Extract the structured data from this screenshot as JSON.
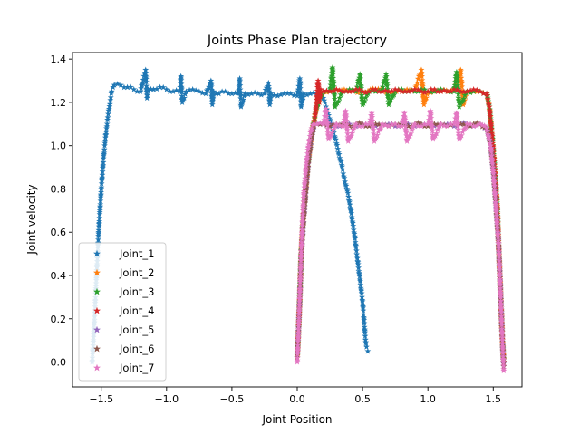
{
  "chart_data": {
    "type": "scatter",
    "title": "Joints Phase Plan trajectory",
    "xlabel": "Joint Position",
    "ylabel": "Joint velocity",
    "xlim": [
      -1.72,
      1.72
    ],
    "ylim": [
      -0.115,
      1.43
    ],
    "xticks": [
      -1.5,
      -1.0,
      -0.5,
      0.0,
      0.5,
      1.0,
      1.5
    ],
    "xtick_labels": [
      "−1.5",
      "−1.0",
      "−0.5",
      "0.0",
      "0.5",
      "1.0",
      "1.5"
    ],
    "yticks": [
      0.0,
      0.2,
      0.4,
      0.6,
      0.8,
      1.0,
      1.2,
      1.4
    ],
    "ytick_labels": [
      "0.0",
      "0.2",
      "0.4",
      "0.6",
      "0.8",
      "1.0",
      "1.2",
      "1.4"
    ],
    "grid": false,
    "legend_position": "lower-left",
    "marker": "star",
    "series": [
      {
        "name": "Joint_1",
        "color": "#1f77b4",
        "x": [
          -1.57,
          -1.56,
          -1.55,
          -1.54,
          -1.53,
          -1.52,
          -1.51,
          -1.5,
          -1.49,
          -1.48,
          -1.47,
          -1.46,
          -1.45,
          -1.44,
          -1.43,
          -1.42,
          -1.41,
          -1.4,
          -1.35,
          -1.3,
          -1.25,
          -1.2,
          -1.16,
          -1.15,
          -1.14,
          -1.1,
          -1.05,
          -1.0,
          -0.95,
          -0.9,
          -0.89,
          -0.88,
          -0.85,
          -0.8,
          -0.75,
          -0.7,
          -0.66,
          -0.65,
          -0.64,
          -0.6,
          -0.55,
          -0.5,
          -0.45,
          -0.44,
          -0.43,
          -0.4,
          -0.35,
          -0.3,
          -0.25,
          -0.22,
          -0.21,
          -0.2,
          -0.15,
          -0.1,
          -0.05,
          0.0,
          0.02,
          0.03,
          0.05,
          0.1,
          0.15,
          0.2,
          0.22,
          0.24,
          0.26,
          0.28,
          0.3,
          0.32,
          0.34,
          0.36,
          0.38,
          0.4,
          0.42,
          0.44,
          0.46,
          0.48,
          0.5,
          0.51,
          0.52,
          0.53,
          0.54
        ],
        "y": [
          0.0,
          0.1,
          0.22,
          0.35,
          0.48,
          0.6,
          0.7,
          0.8,
          0.88,
          0.96,
          1.02,
          1.08,
          1.13,
          1.17,
          1.21,
          1.25,
          1.27,
          1.28,
          1.28,
          1.27,
          1.26,
          1.25,
          1.35,
          1.22,
          1.26,
          1.26,
          1.27,
          1.26,
          1.25,
          1.25,
          1.32,
          1.2,
          1.25,
          1.26,
          1.25,
          1.24,
          1.3,
          1.19,
          1.25,
          1.24,
          1.25,
          1.24,
          1.24,
          1.31,
          1.18,
          1.24,
          1.24,
          1.24,
          1.24,
          1.29,
          1.19,
          1.24,
          1.23,
          1.24,
          1.24,
          1.23,
          1.31,
          1.18,
          1.24,
          1.24,
          1.24,
          1.22,
          1.18,
          1.14,
          1.1,
          1.06,
          1.01,
          0.96,
          0.91,
          0.85,
          0.8,
          0.74,
          0.66,
          0.58,
          0.48,
          0.38,
          0.28,
          0.2,
          0.12,
          0.07,
          0.05
        ]
      },
      {
        "name": "Joint_2",
        "color": "#ff7f0e",
        "x": [
          0.0,
          0.01,
          0.02,
          0.03,
          0.05,
          0.08,
          0.11,
          0.14,
          0.17,
          0.2,
          0.25,
          0.3,
          0.4,
          0.5,
          0.6,
          0.7,
          0.8,
          0.9,
          0.95,
          0.97,
          1.0,
          1.1,
          1.2,
          1.25,
          1.27,
          1.3,
          1.35,
          1.4,
          1.45,
          1.47,
          1.49,
          1.51,
          1.53,
          1.54,
          1.55,
          1.56,
          1.57,
          1.58
        ],
        "y": [
          0.02,
          0.15,
          0.3,
          0.5,
          0.7,
          0.9,
          1.05,
          1.15,
          1.22,
          1.25,
          1.25,
          1.26,
          1.25,
          1.25,
          1.26,
          1.25,
          1.25,
          1.26,
          1.35,
          1.19,
          1.25,
          1.25,
          1.26,
          1.35,
          1.19,
          1.25,
          1.25,
          1.25,
          1.24,
          1.18,
          1.05,
          0.9,
          0.72,
          0.55,
          0.4,
          0.25,
          0.1,
          0.0
        ]
      },
      {
        "name": "Joint_3",
        "color": "#2ca02c",
        "x": [
          0.0,
          0.01,
          0.02,
          0.03,
          0.05,
          0.08,
          0.11,
          0.14,
          0.17,
          0.2,
          0.25,
          0.27,
          0.29,
          0.35,
          0.4,
          0.45,
          0.48,
          0.5,
          0.55,
          0.6,
          0.65,
          0.68,
          0.7,
          0.75,
          0.8,
          0.85,
          0.9,
          0.95,
          1.0,
          1.05,
          1.1,
          1.15,
          1.2,
          1.22,
          1.24,
          1.3,
          1.35,
          1.4,
          1.45,
          1.47,
          1.49,
          1.51,
          1.53,
          1.54,
          1.55,
          1.56,
          1.57,
          1.58
        ],
        "y": [
          0.02,
          0.15,
          0.3,
          0.5,
          0.7,
          0.9,
          1.05,
          1.15,
          1.22,
          1.25,
          1.25,
          1.36,
          1.18,
          1.25,
          1.26,
          1.25,
          1.33,
          1.19,
          1.25,
          1.25,
          1.26,
          1.33,
          1.19,
          1.25,
          1.26,
          1.25,
          1.25,
          1.26,
          1.25,
          1.25,
          1.26,
          1.25,
          1.25,
          1.34,
          1.18,
          1.25,
          1.25,
          1.25,
          1.24,
          1.18,
          1.05,
          0.9,
          0.72,
          0.55,
          0.4,
          0.25,
          0.1,
          0.0
        ]
      },
      {
        "name": "Joint_4",
        "color": "#d62728",
        "x": [
          0.0,
          0.01,
          0.02,
          0.03,
          0.05,
          0.08,
          0.11,
          0.14,
          0.16,
          0.17,
          0.18,
          0.2,
          0.25,
          0.3,
          0.35,
          0.4,
          0.45,
          0.5,
          0.55,
          0.6,
          0.65,
          0.7,
          0.75,
          0.8,
          0.85,
          0.9,
          0.95,
          1.0,
          1.05,
          1.1,
          1.15,
          1.2,
          1.25,
          1.3,
          1.35,
          1.4,
          1.45,
          1.47,
          1.49,
          1.51,
          1.53,
          1.54,
          1.55,
          1.56,
          1.57,
          1.58
        ],
        "y": [
          0.02,
          0.15,
          0.3,
          0.5,
          0.7,
          0.9,
          1.05,
          1.15,
          1.3,
          1.2,
          1.26,
          1.25,
          1.25,
          1.26,
          1.25,
          1.25,
          1.26,
          1.25,
          1.25,
          1.26,
          1.25,
          1.25,
          1.26,
          1.25,
          1.25,
          1.26,
          1.25,
          1.25,
          1.26,
          1.25,
          1.25,
          1.26,
          1.25,
          1.25,
          1.26,
          1.25,
          1.24,
          1.18,
          1.05,
          0.9,
          0.72,
          0.55,
          0.4,
          0.25,
          0.1,
          0.0
        ]
      },
      {
        "name": "Joint_5",
        "color": "#9467bd",
        "x": [
          0.0,
          0.01,
          0.02,
          0.03,
          0.05,
          0.07,
          0.09,
          0.11,
          0.13,
          0.15,
          0.2,
          0.25,
          0.3,
          0.35,
          0.4,
          0.45,
          0.5,
          0.55,
          0.6,
          0.65,
          0.7,
          0.75,
          0.8,
          0.85,
          0.9,
          0.95,
          1.0,
          1.05,
          1.1,
          1.15,
          1.2,
          1.25,
          1.3,
          1.35,
          1.4,
          1.45,
          1.48,
          1.5,
          1.52,
          1.54,
          1.55,
          1.56,
          1.57,
          1.58
        ],
        "y": [
          0.02,
          0.15,
          0.3,
          0.48,
          0.66,
          0.82,
          0.95,
          1.04,
          1.09,
          1.1,
          1.1,
          1.1,
          1.09,
          1.1,
          1.1,
          1.09,
          1.1,
          1.1,
          1.09,
          1.1,
          1.1,
          1.09,
          1.1,
          1.1,
          1.09,
          1.1,
          1.1,
          1.09,
          1.1,
          1.1,
          1.09,
          1.1,
          1.1,
          1.09,
          1.1,
          1.08,
          1.0,
          0.88,
          0.72,
          0.55,
          0.4,
          0.25,
          0.1,
          -0.02
        ]
      },
      {
        "name": "Joint_6",
        "color": "#8c564b",
        "x": [
          0.0,
          0.01,
          0.02,
          0.03,
          0.05,
          0.07,
          0.09,
          0.11,
          0.13,
          0.15,
          0.2,
          0.25,
          0.3,
          0.35,
          0.4,
          0.45,
          0.5,
          0.55,
          0.6,
          0.65,
          0.7,
          0.75,
          0.8,
          0.85,
          0.9,
          0.95,
          1.0,
          1.05,
          1.1,
          1.15,
          1.2,
          1.25,
          1.3,
          1.35,
          1.4,
          1.45,
          1.48,
          1.5,
          1.52,
          1.54,
          1.55,
          1.56,
          1.57,
          1.58
        ],
        "y": [
          0.02,
          0.15,
          0.3,
          0.48,
          0.66,
          0.82,
          0.95,
          1.04,
          1.09,
          1.1,
          1.1,
          1.09,
          1.1,
          1.1,
          1.09,
          1.1,
          1.1,
          1.09,
          1.1,
          1.1,
          1.09,
          1.1,
          1.1,
          1.09,
          1.1,
          1.1,
          1.09,
          1.1,
          1.1,
          1.09,
          1.1,
          1.1,
          1.09,
          1.1,
          1.1,
          1.08,
          1.0,
          0.88,
          0.72,
          0.55,
          0.4,
          0.25,
          0.1,
          -0.02
        ]
      },
      {
        "name": "Joint_7",
        "color": "#e377c2",
        "x": [
          0.0,
          0.01,
          0.02,
          0.03,
          0.04,
          0.05,
          0.07,
          0.09,
          0.11,
          0.13,
          0.15,
          0.2,
          0.22,
          0.24,
          0.3,
          0.35,
          0.37,
          0.39,
          0.45,
          0.5,
          0.55,
          0.57,
          0.59,
          0.65,
          0.7,
          0.75,
          0.8,
          0.82,
          0.84,
          0.9,
          0.95,
          1.0,
          1.02,
          1.04,
          1.1,
          1.15,
          1.2,
          1.22,
          1.24,
          1.3,
          1.35,
          1.4,
          1.45,
          1.48,
          1.5,
          1.52,
          1.54,
          1.55,
          1.56,
          1.57,
          1.58
        ],
        "y": [
          0.0,
          0.15,
          0.32,
          0.5,
          0.65,
          0.78,
          0.92,
          1.02,
          1.08,
          1.1,
          1.1,
          1.1,
          1.17,
          1.03,
          1.1,
          1.09,
          1.16,
          1.02,
          1.1,
          1.09,
          1.1,
          1.15,
          1.02,
          1.1,
          1.09,
          1.1,
          1.09,
          1.15,
          1.02,
          1.1,
          1.09,
          1.1,
          1.16,
          1.03,
          1.1,
          1.09,
          1.1,
          1.15,
          1.03,
          1.1,
          1.09,
          1.1,
          1.08,
          1.0,
          0.88,
          0.72,
          0.55,
          0.4,
          0.25,
          0.1,
          -0.04
        ]
      }
    ]
  }
}
